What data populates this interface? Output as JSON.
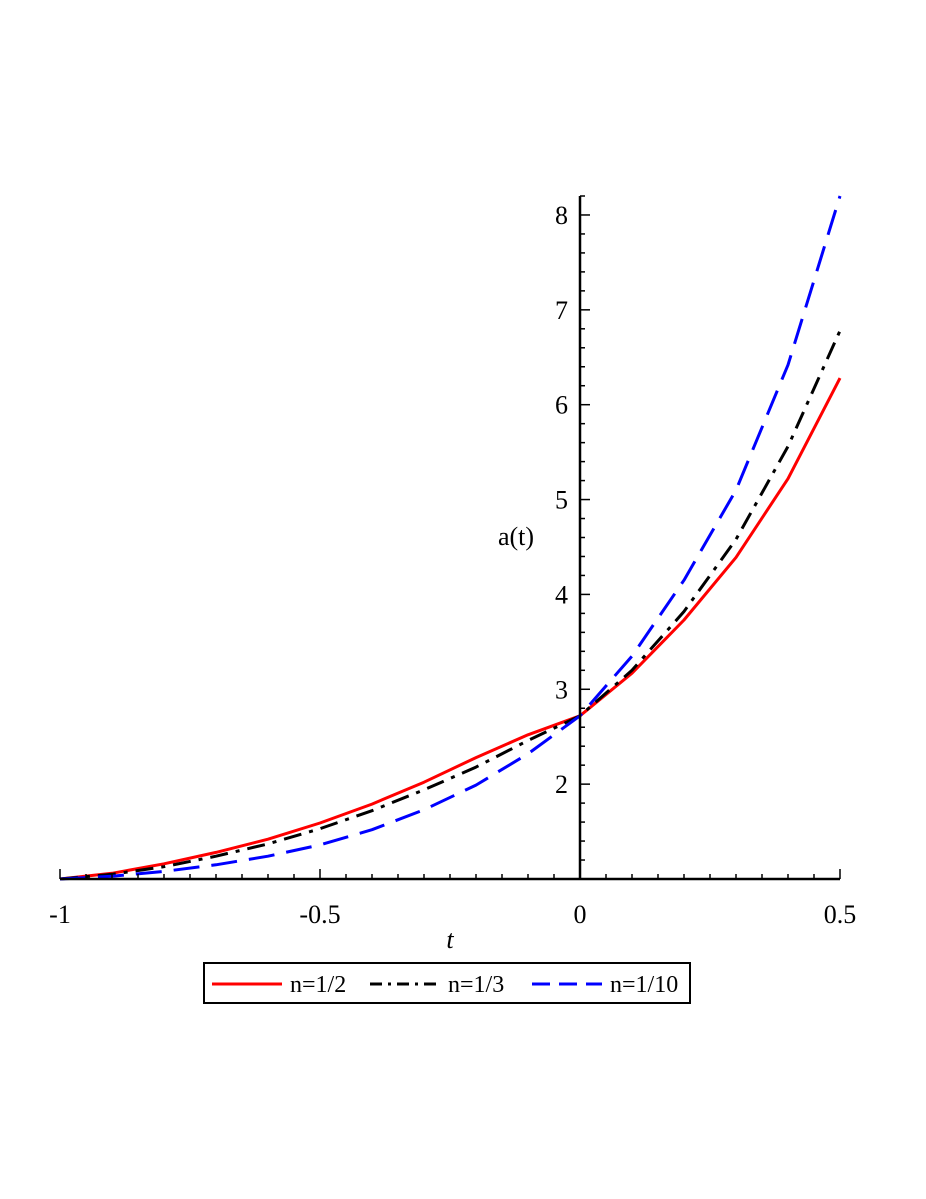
{
  "chart_data": {
    "type": "line",
    "title": "",
    "xlabel": "t",
    "ylabel": "a(t)",
    "xlim": [
      -1,
      0.5
    ],
    "ylim": [
      1,
      8.2
    ],
    "x_ticks": [
      {
        "value": -1,
        "label": "-1"
      },
      {
        "value": -0.5,
        "label": "-0.5"
      },
      {
        "value": 0,
        "label": "0"
      },
      {
        "value": 0.5,
        "label": "0.5"
      }
    ],
    "y_ticks": [
      {
        "value": 2,
        "label": "2"
      },
      {
        "value": 3,
        "label": "3"
      },
      {
        "value": 4,
        "label": "4"
      },
      {
        "value": 5,
        "label": "5"
      },
      {
        "value": 6,
        "label": "6"
      },
      {
        "value": 7,
        "label": "7"
      },
      {
        "value": 8,
        "label": "8"
      }
    ],
    "grid": false,
    "legend_position": "bottom",
    "x": [
      -1,
      -0.9,
      -0.8,
      -0.7,
      -0.6,
      -0.5,
      -0.4,
      -0.3,
      -0.2,
      -0.1,
      0,
      0.1,
      0.2,
      0.3,
      0.4,
      0.5
    ],
    "series": [
      {
        "name": "n=1/2",
        "color": "#ff0000",
        "dash": "solid",
        "values": [
          1.0,
          1.06,
          1.16,
          1.28,
          1.42,
          1.59,
          1.79,
          2.02,
          2.28,
          2.52,
          2.72,
          3.17,
          3.73,
          4.39,
          5.22,
          6.28
        ]
      },
      {
        "name": "n=1/3",
        "color": "#000000",
        "dash": "dashdot",
        "values": [
          1.0,
          1.05,
          1.13,
          1.24,
          1.37,
          1.53,
          1.72,
          1.94,
          2.18,
          2.46,
          2.72,
          3.2,
          3.82,
          4.58,
          5.56,
          6.78
        ]
      },
      {
        "name": "n=1/10",
        "color": "#0000ff",
        "dash": "dash",
        "values": [
          1.0,
          1.03,
          1.08,
          1.15,
          1.24,
          1.36,
          1.52,
          1.73,
          1.99,
          2.32,
          2.72,
          3.35,
          4.15,
          5.1,
          6.42,
          8.2
        ]
      }
    ]
  }
}
